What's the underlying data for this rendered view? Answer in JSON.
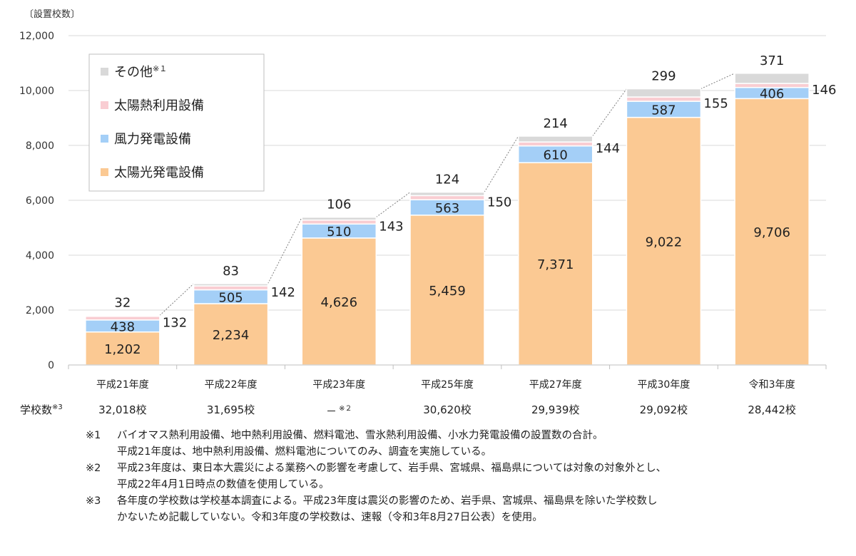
{
  "chart_data": {
    "type": "bar",
    "stacked": true,
    "ylabel": "〔設置校数〕",
    "ylim": [
      0,
      12000
    ],
    "yticks": [
      0,
      2000,
      4000,
      6000,
      8000,
      10000,
      12000
    ],
    "ytick_labels": [
      "0",
      "2,000",
      "4,000",
      "6,000",
      "8,000",
      "10,000",
      "12,000"
    ],
    "grid": true,
    "legend_position": "top-left",
    "categories": [
      "平成21年度",
      "平成22年度",
      "平成23年度",
      "平成25年度",
      "平成27年度",
      "平成30年度",
      "令和3年度"
    ],
    "series": [
      {
        "name": "太陽光発電設備",
        "color": "#FBC993",
        "values": [
          1202,
          2234,
          4626,
          5459,
          7371,
          9022,
          9706
        ],
        "labels": [
          "1,202",
          "2,234",
          "4,626",
          "5,459",
          "7,371",
          "9,022",
          "9,706"
        ]
      },
      {
        "name": "風力発電設備",
        "color": "#A4CFF7",
        "values": [
          438,
          505,
          510,
          563,
          610,
          587,
          406
        ],
        "labels": [
          "438",
          "505",
          "510",
          "563",
          "610",
          "587",
          "406"
        ]
      },
      {
        "name": "太陽熱利用設備",
        "color": "#F9CDD2",
        "values": [
          132,
          142,
          143,
          150,
          144,
          155,
          146
        ],
        "labels": [
          "132",
          "142",
          "143",
          "150",
          "144",
          "155",
          "146"
        ]
      },
      {
        "name": "その他",
        "name_sup": "※１",
        "color": "#D9D9D9",
        "values": [
          32,
          83,
          106,
          124,
          214,
          299,
          371
        ],
        "labels": [
          "32",
          "83",
          "106",
          "124",
          "214",
          "299",
          "371"
        ]
      }
    ]
  },
  "schools": {
    "label": "学校数",
    "label_sup": "※3",
    "values": [
      {
        "text": "32,018校",
        "sup": ""
      },
      {
        "text": "31,695校",
        "sup": ""
      },
      {
        "text": "－",
        "sup": "※２"
      },
      {
        "text": "30,620校",
        "sup": ""
      },
      {
        "text": "29,939校",
        "sup": ""
      },
      {
        "text": "29,092校",
        "sup": ""
      },
      {
        "text": "28,442校",
        "sup": ""
      }
    ]
  },
  "notes": [
    {
      "mark": "※1",
      "lines": [
        "バイオマス熱利用設備、地中熱利用設備、燃料電池、雪氷熱利用設備、小水力発電設備の設置数の合計。",
        "平成21年度は、地中熱利用設備、燃料電池についてのみ、調査を実施している。"
      ]
    },
    {
      "mark": "※2",
      "lines": [
        "平成23年度は、東日本大震災による業務への影響を考慮して、岩手県、宮城県、福島県については対象の対象外とし、",
        "平成22年4月1日時点の数値を使用している。"
      ]
    },
    {
      "mark": "※3",
      "lines": [
        "各年度の学校数は学校基本調査による。平成23年度は震災の影響のため、岩手県、宮城県、福島県を除いた学校数し",
        "かないため記載していない。令和3年度の学校数は、速報（令和3年8月27日公表）を使用。"
      ]
    }
  ]
}
